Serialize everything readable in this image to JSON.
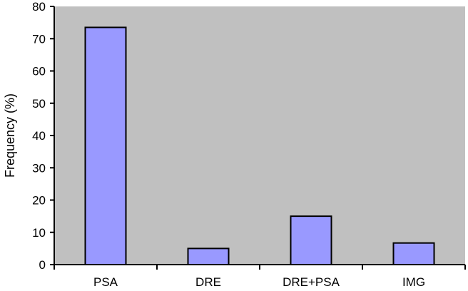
{
  "chart_data": {
    "type": "bar",
    "title": "",
    "xlabel": "",
    "ylabel": "Frequency  (%)",
    "categories": [
      "PSA",
      "DRE",
      "DRE+PSA",
      "IMG"
    ],
    "values": [
      73.5,
      5,
      15,
      6.7
    ],
    "ylim": [
      0,
      80
    ],
    "yticks": [
      0,
      10,
      20,
      30,
      40,
      50,
      60,
      70,
      80
    ],
    "grid": false,
    "legend": "none",
    "colors": {
      "bar_fill": "#9999ff",
      "bar_stroke": "#000000",
      "plot_background": "#c0c0c0",
      "axis": "#000000"
    }
  }
}
